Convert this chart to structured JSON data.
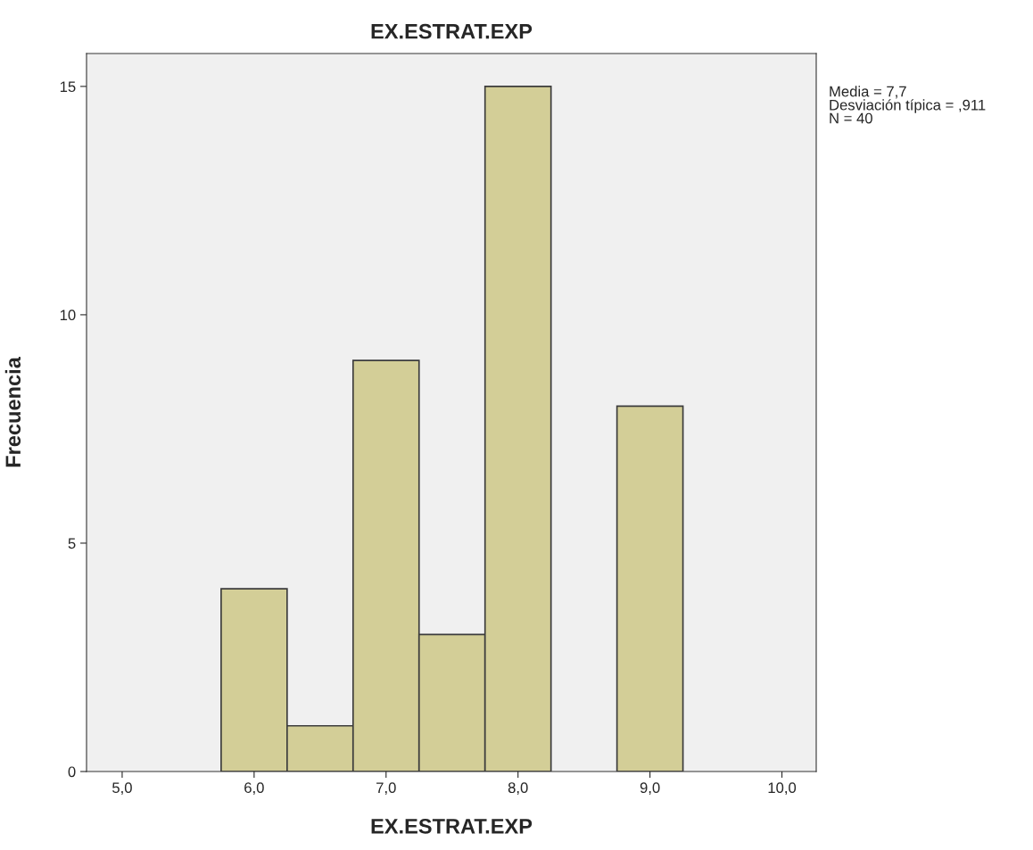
{
  "chart_data": {
    "type": "histogram",
    "title": "EX.ESTRAT.EXP",
    "xlabel": "EX.ESTRAT.EXP",
    "ylabel": "Frecuencia",
    "bins": [
      5.75,
      6.25,
      6.75,
      7.25,
      7.75,
      8.25,
      8.75,
      9.25
    ],
    "values": [
      4,
      1,
      9,
      3,
      15,
      0,
      8
    ],
    "color": "#d3ce97",
    "xlim": [
      4.73,
      10.26
    ],
    "xticks": [
      {
        "value": 5,
        "label": "5,0"
      },
      {
        "value": 6,
        "label": "6,0"
      },
      {
        "value": 7,
        "label": "7,0"
      },
      {
        "value": 8,
        "label": "8,0"
      },
      {
        "value": 9,
        "label": "9,0"
      },
      {
        "value": 10,
        "label": "10,0"
      }
    ],
    "ylim": [
      0,
      15.72
    ],
    "yticks": [
      0,
      5,
      10,
      15
    ],
    "annotations": [
      "Media = 7,7",
      "Desviación típica = ,911",
      "N = 40"
    ],
    "grid": false,
    "legend": false
  }
}
